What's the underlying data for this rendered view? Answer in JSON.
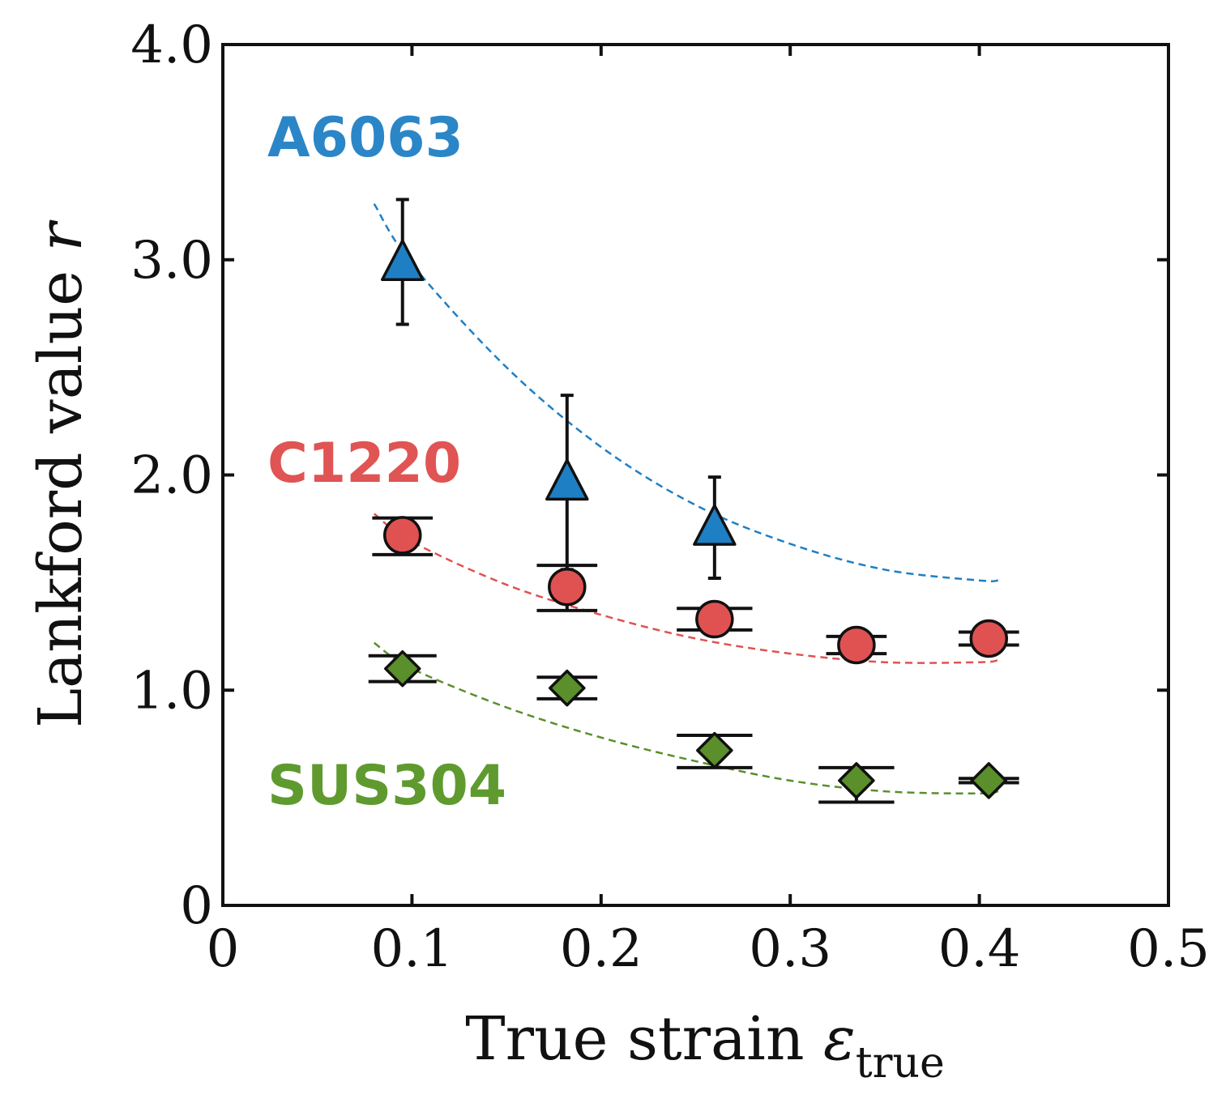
{
  "chart_data": {
    "type": "scatter",
    "xlabel": "True strain",
    "xlabel_symbol": "ε",
    "xlabel_subscript": "true",
    "ylabel": "Lankford value",
    "ylabel_symbol": "r",
    "xlim": [
      0,
      0.5
    ],
    "ylim": [
      0,
      4.0
    ],
    "xticks": [
      0,
      0.1,
      0.2,
      0.3,
      0.4,
      0.5
    ],
    "xtick_labels": [
      "0",
      "0.1",
      "0.2",
      "0.3",
      "0.4",
      "0.5"
    ],
    "yticks": [
      0,
      1.0,
      2.0,
      3.0,
      4.0
    ],
    "ytick_labels": [
      "0",
      "1.0",
      "2.0",
      "3.0",
      "4.0"
    ],
    "grid": false,
    "series": [
      {
        "name": "A6063",
        "marker": "triangle",
        "color": "#1f7fc4",
        "label_color": "#2b86c8",
        "x": [
          0.095,
          0.182,
          0.26
        ],
        "y": [
          2.98,
          1.96,
          1.75
        ],
        "y_err_low": [
          0.28,
          0.4,
          0.23
        ],
        "y_err_high": [
          0.3,
          0.41,
          0.24
        ],
        "x_err": [
          0,
          0,
          0
        ],
        "trend": {
          "x": [
            0.08,
            0.1,
            0.15,
            0.2,
            0.25,
            0.3,
            0.35,
            0.4,
            0.41
          ],
          "y": [
            3.26,
            2.98,
            2.5,
            2.13,
            1.86,
            1.68,
            1.56,
            1.51,
            1.51
          ]
        }
      },
      {
        "name": "C1220",
        "marker": "circle",
        "color": "#e05252",
        "label_color": "#e05454",
        "x": [
          0.095,
          0.182,
          0.26,
          0.335,
          0.405
        ],
        "y": [
          1.72,
          1.48,
          1.33,
          1.21,
          1.24
        ],
        "y_err_low": [
          0.09,
          0.11,
          0.05,
          0.04,
          0.03
        ],
        "y_err_high": [
          0.08,
          0.1,
          0.05,
          0.04,
          0.03
        ],
        "x_err": [
          0.016,
          0.016,
          0.02,
          0.016,
          0.016
        ],
        "trend": {
          "x": [
            0.08,
            0.1,
            0.15,
            0.2,
            0.25,
            0.3,
            0.35,
            0.4,
            0.41
          ],
          "y": [
            1.82,
            1.69,
            1.49,
            1.35,
            1.24,
            1.17,
            1.13,
            1.13,
            1.14
          ]
        }
      },
      {
        "name": "SUS304",
        "marker": "diamond",
        "color": "#5a8f2b",
        "label_color": "#5f9a2f",
        "x": [
          0.095,
          0.182,
          0.26,
          0.335,
          0.405
        ],
        "y": [
          1.1,
          1.01,
          0.72,
          0.58,
          0.58
        ],
        "y_err_low": [
          0.06,
          0.05,
          0.08,
          0.1,
          0.01
        ],
        "y_err_high": [
          0.06,
          0.05,
          0.07,
          0.06,
          0.01
        ],
        "x_err": [
          0.018,
          0.016,
          0.02,
          0.02,
          0.016
        ],
        "trend": {
          "x": [
            0.08,
            0.1,
            0.15,
            0.2,
            0.25,
            0.3,
            0.35,
            0.4,
            0.41
          ],
          "y": [
            1.22,
            1.1,
            0.92,
            0.78,
            0.67,
            0.58,
            0.53,
            0.52,
            0.53
          ]
        }
      }
    ]
  }
}
